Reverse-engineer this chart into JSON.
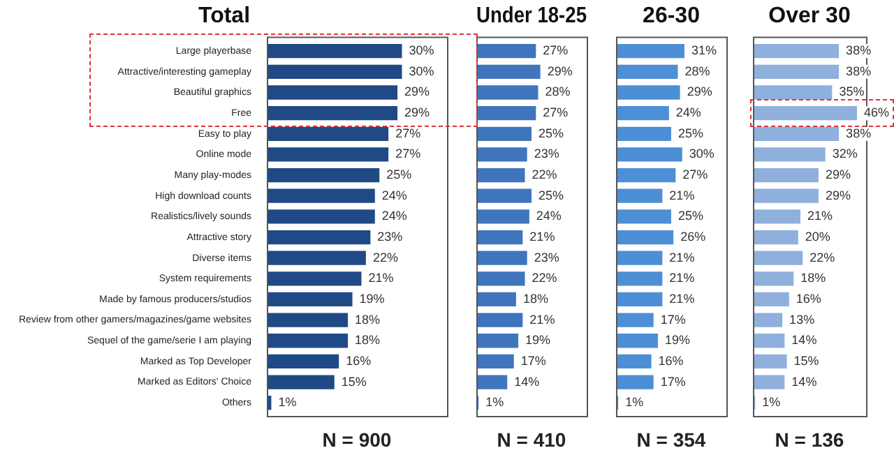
{
  "chart_data": [
    {
      "type": "bar",
      "orientation": "horizontal",
      "title": "Total",
      "tick_labels": "y",
      "categories": [
        "Large playerbase",
        "Attractive/interesting gameplay",
        "Beautiful graphics",
        "Free",
        "Easy to play",
        "Online mode",
        "Many play-modes",
        "High download counts",
        "Realistics/lively sounds",
        "Attractive story",
        "Diverse items",
        "System requirements",
        "Made by famous producers/studios",
        "Review from other gamers/magazines/game websites",
        "Sequel of the game/serie I am playing",
        "Marked as Top Developer",
        "Marked as Editors' Choice",
        "Others"
      ],
      "xlim": [
        0,
        40
      ],
      "color": "#1f4a86",
      "values": [
        30,
        30,
        29,
        29,
        27,
        27,
        25,
        24,
        24,
        23,
        22,
        21,
        19,
        18,
        18,
        16,
        15,
        1
      ],
      "value_labels": [
        "30%",
        "30%",
        "29%",
        "29%",
        "27%",
        "27%",
        "25%",
        "24%",
        "24%",
        "23%",
        "22%",
        "21%",
        "19%",
        "18%",
        "18%",
        "16%",
        "15%",
        "1%"
      ],
      "annotations": [
        "N = 900"
      ]
    },
    {
      "type": "bar",
      "orientation": "horizontal",
      "title": "Under 18-25",
      "tick_labels": false,
      "categories": [
        null,
        null,
        null,
        null,
        null,
        null,
        null,
        null,
        null,
        null,
        null,
        null,
        null,
        null,
        null,
        null,
        null,
        null
      ],
      "xlim": [
        0,
        50
      ],
      "color": "#3f75bd",
      "values": [
        27,
        29,
        28,
        27,
        25,
        23,
        22,
        25,
        24,
        21,
        23,
        22,
        18,
        21,
        19,
        17,
        14,
        1
      ],
      "value_labels": [
        "27%",
        "29%",
        "28%",
        "27%",
        "25%",
        "23%",
        "22%",
        "25%",
        "24%",
        "21%",
        "23%",
        "22%",
        "18%",
        "21%",
        "19%",
        "17%",
        "14%",
        "1%"
      ],
      "annotations": [
        "N = 410"
      ]
    },
    {
      "type": "bar",
      "orientation": "horizontal",
      "title": "26-30",
      "tick_labels": false,
      "categories": [
        null,
        null,
        null,
        null,
        null,
        null,
        null,
        null,
        null,
        null,
        null,
        null,
        null,
        null,
        null,
        null,
        null,
        null
      ],
      "xlim": [
        0,
        50
      ],
      "color": "#4d8fd6",
      "values": [
        31,
        28,
        29,
        24,
        25,
        30,
        27,
        21,
        25,
        26,
        21,
        21,
        21,
        17,
        19,
        16,
        17,
        1
      ],
      "value_labels": [
        "31%",
        "28%",
        "29%",
        "24%",
        "25%",
        "30%",
        "27%",
        "21%",
        "25%",
        "26%",
        "21%",
        "21%",
        "21%",
        "17%",
        "19%",
        "16%",
        "17%",
        "1%"
      ],
      "annotations": [
        "N = 354"
      ]
    },
    {
      "type": "bar",
      "orientation": "horizontal",
      "title": "Over 30",
      "tick_labels": false,
      "categories": [
        null,
        null,
        null,
        null,
        null,
        null,
        null,
        null,
        null,
        null,
        null,
        null,
        null,
        null,
        null,
        null,
        null,
        null
      ],
      "xlim": [
        0,
        50
      ],
      "color": "#8fb0dd",
      "values": [
        38,
        38,
        35,
        46,
        38,
        32,
        29,
        29,
        21,
        20,
        22,
        18,
        16,
        13,
        14,
        15,
        14,
        1
      ],
      "value_labels": [
        "38%",
        "38%",
        "35%",
        "46%",
        "38%",
        "32%",
        "29%",
        "29%",
        "21%",
        "20%",
        "22%",
        "18%",
        "16%",
        "13%",
        "14%",
        "15%",
        "14%",
        "1%"
      ],
      "annotations": [
        "N = 136"
      ]
    }
  ]
}
